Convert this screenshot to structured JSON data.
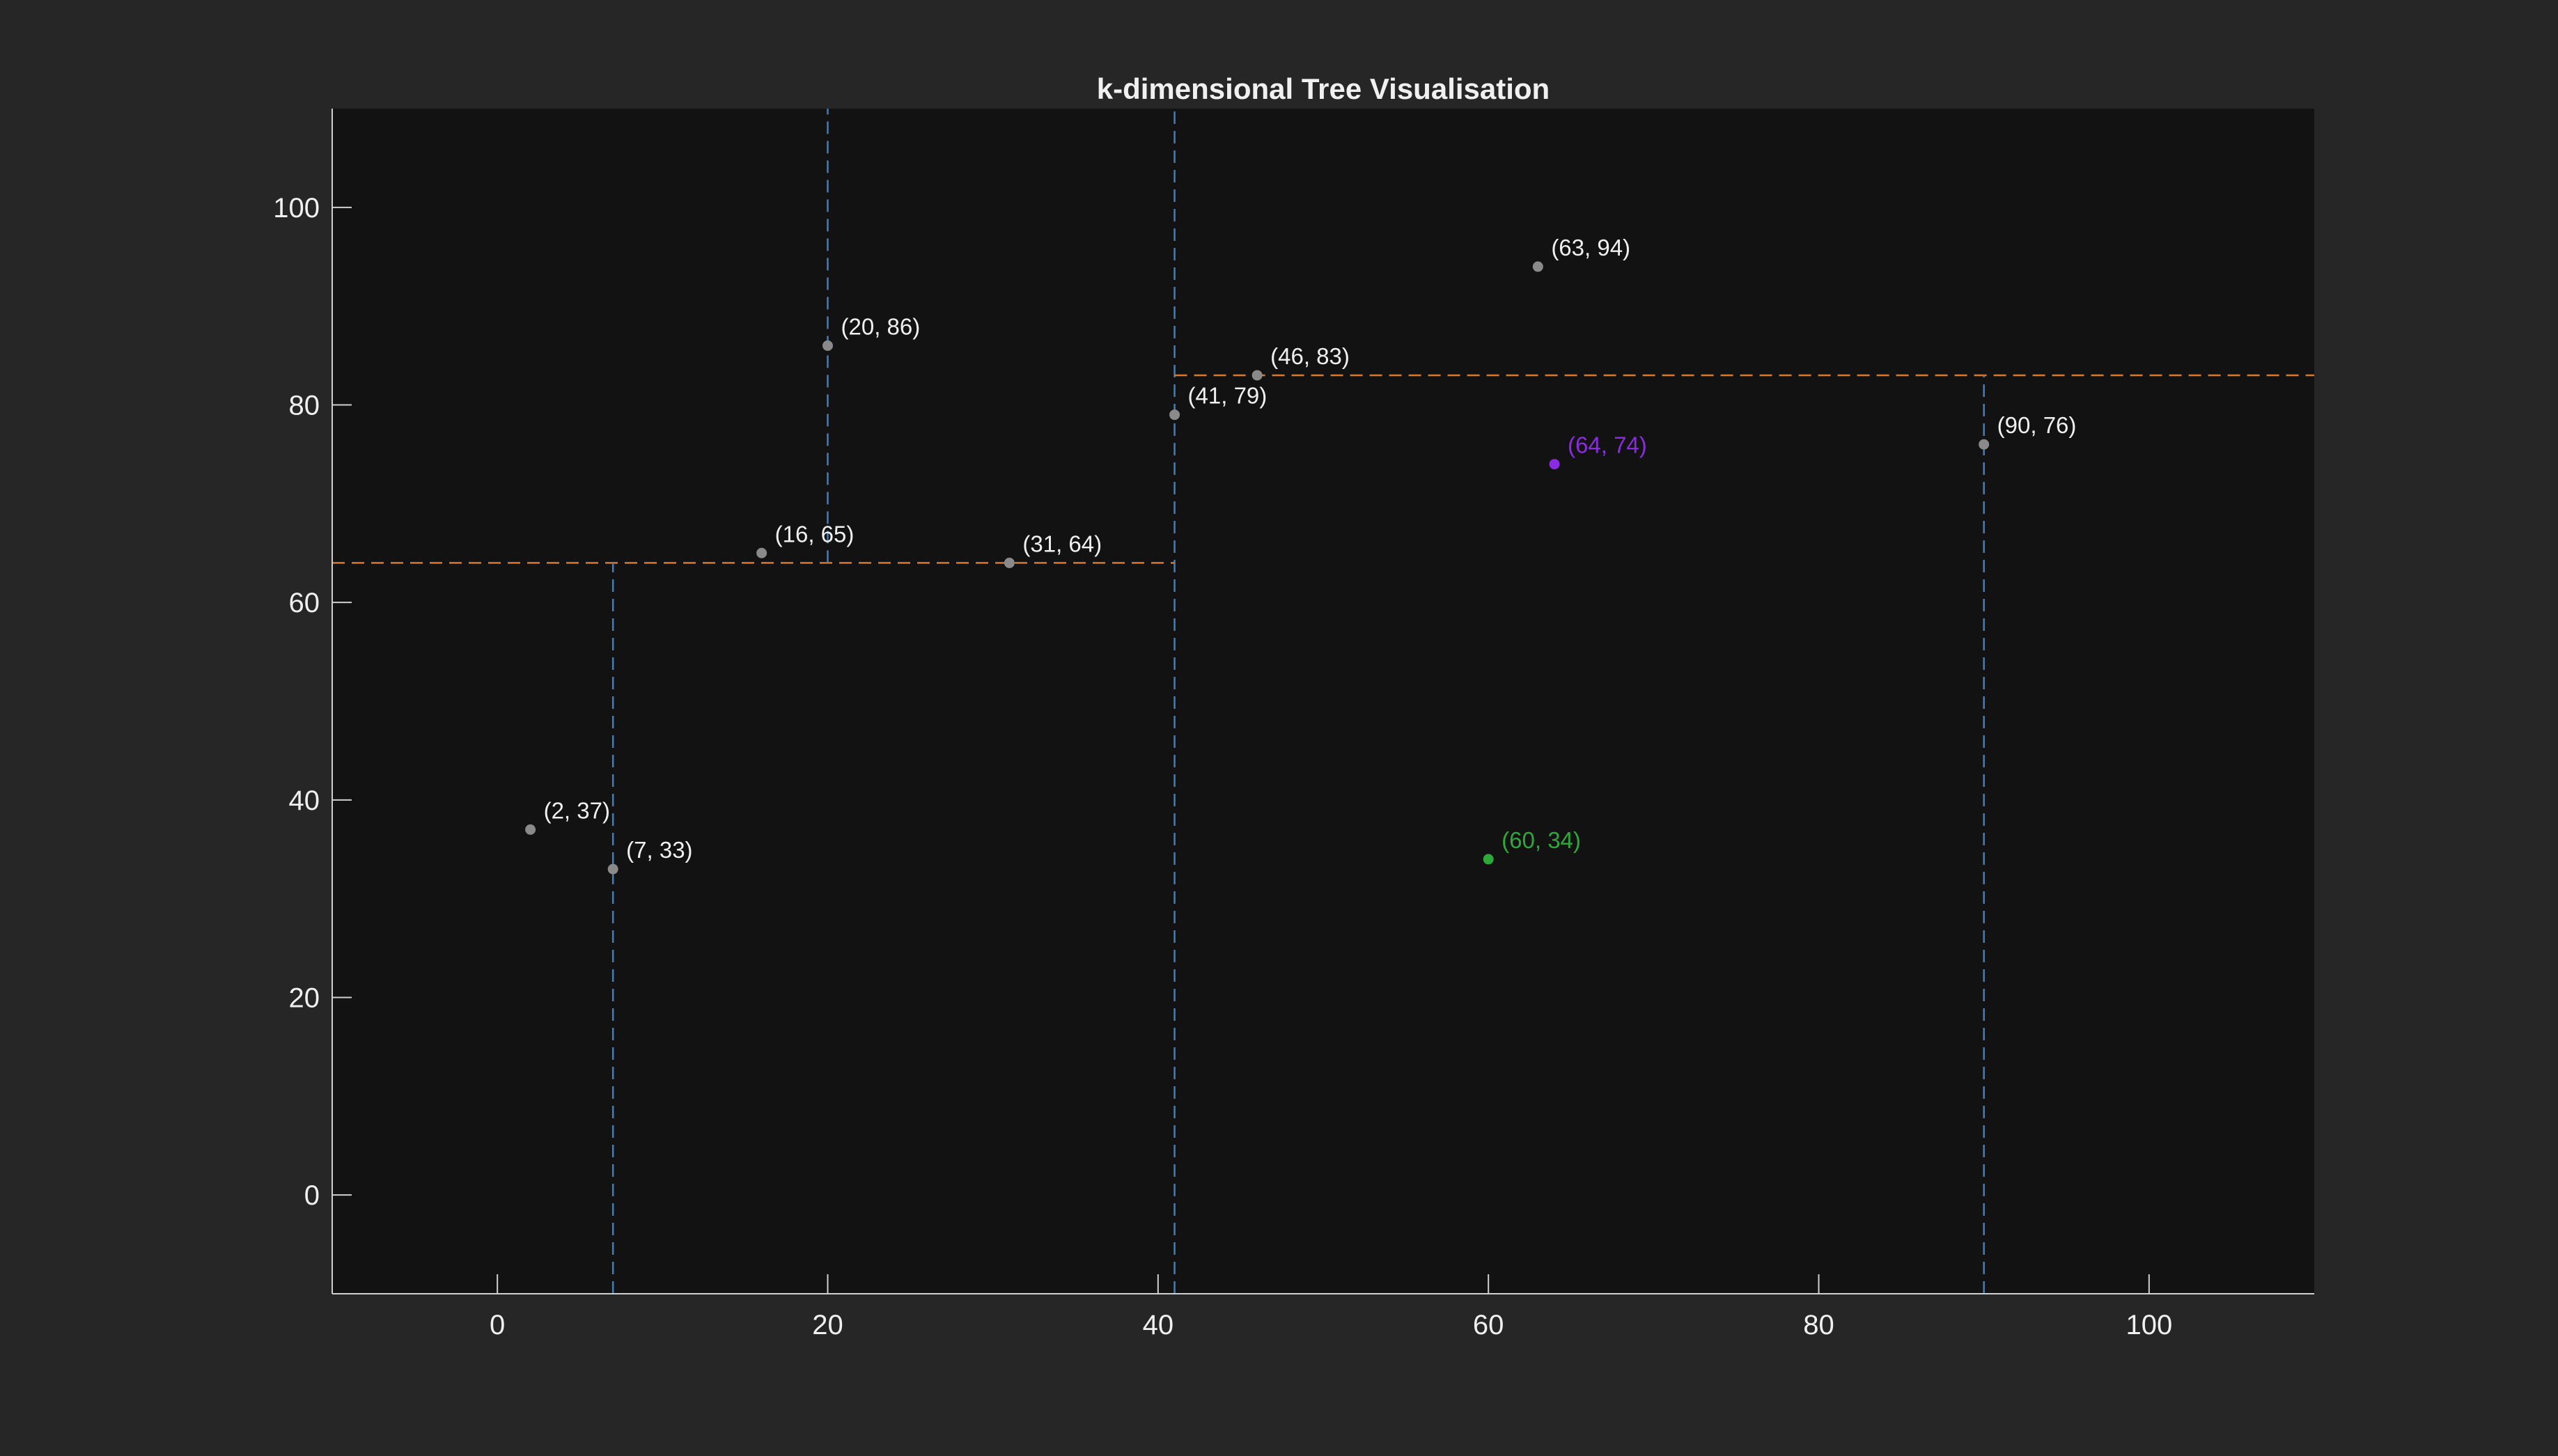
{
  "chart_data": {
    "type": "scatter",
    "title": "k-dimensional Tree Visualisation",
    "xlabel": "",
    "ylabel": "",
    "xlim": [
      -10,
      110
    ],
    "ylim": [
      -10,
      110
    ],
    "xticks": [
      0,
      20,
      40,
      60,
      80,
      100
    ],
    "yticks": [
      0,
      20,
      40,
      60,
      80,
      100
    ],
    "grid": false,
    "colors": {
      "background": "#262626",
      "axes_background": "#121212",
      "axis": "#cfcfcf",
      "text": "#f0f0f0",
      "point": "#8a8a8a",
      "split_x": "#3f7fbf",
      "split_y": "#d9782f",
      "query": "#2fa83a",
      "nearest": "#8a2be2"
    },
    "points": [
      {
        "x": 41,
        "y": 79,
        "label": "(41, 79)"
      },
      {
        "x": 31,
        "y": 64,
        "label": "(31, 64)"
      },
      {
        "x": 20,
        "y": 86,
        "label": "(20, 86)"
      },
      {
        "x": 16,
        "y": 65,
        "label": "(16, 65)"
      },
      {
        "x": 7,
        "y": 33,
        "label": "(7, 33)"
      },
      {
        "x": 2,
        "y": 37,
        "label": "(2, 37)"
      },
      {
        "x": 46,
        "y": 83,
        "label": "(46, 83)"
      },
      {
        "x": 90,
        "y": 76,
        "label": "(90, 76)"
      },
      {
        "x": 63,
        "y": 94,
        "label": "(63, 94)"
      }
    ],
    "query_point": {
      "x": 60,
      "y": 34,
      "label": "(60, 34)"
    },
    "nearest_point": {
      "x": 64,
      "y": 74,
      "label": "(64, 74)"
    },
    "splits": [
      {
        "axis": "x",
        "value": 41,
        "from": -10,
        "to": 110
      },
      {
        "axis": "y",
        "value": 64,
        "from": -10,
        "to": 41
      },
      {
        "axis": "x",
        "value": 20,
        "from": 64,
        "to": 110
      },
      {
        "axis": "x",
        "value": 7,
        "from": -10,
        "to": 64
      },
      {
        "axis": "y",
        "value": 83,
        "from": 41,
        "to": 110
      },
      {
        "axis": "x",
        "value": 90,
        "from": -10,
        "to": 83
      }
    ]
  }
}
